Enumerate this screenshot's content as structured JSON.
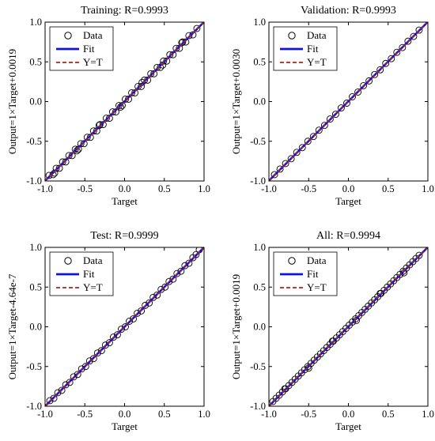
{
  "colors": {
    "fit": "#1010e0",
    "yt": "#b02018",
    "data": "#000000",
    "axis": "#000000"
  },
  "legend_icons": [
    "circle-marker-icon",
    "solid-line-icon",
    "dashed-line-icon"
  ],
  "chart_data": [
    {
      "type": "scatter",
      "title": "Training:  R=0.9993",
      "xlabel": "Target",
      "ylabel": "Output=1×Target+0.0019",
      "xlim": [
        -1.0,
        1.0
      ],
      "ylim": [
        -1.0,
        1.0
      ],
      "xticks": [
        "-1.0",
        "-0.5",
        "0.0",
        "0.5",
        "1.0"
      ],
      "yticks": [
        "-1.0",
        "-0.5",
        "0.0",
        "0.5",
        "1.0"
      ],
      "grid": false,
      "legend_position": "top-left",
      "legend": [
        "Data",
        "Fit",
        "Y=T"
      ],
      "fit": {
        "slope": 1,
        "intercept": 0.0019
      },
      "series": [
        {
          "name": "Data",
          "kind": "points",
          "x": [
            -0.95,
            -0.9,
            -0.86,
            -0.82,
            -0.78,
            -0.74,
            -0.7,
            -0.66,
            -0.62,
            -0.58,
            -0.55,
            -0.51,
            -0.47,
            -0.43,
            -0.39,
            -0.35,
            -0.31,
            -0.27,
            -0.23,
            -0.19,
            -0.15,
            -0.11,
            -0.07,
            -0.03,
            0.01,
            0.05,
            0.09,
            0.13,
            0.17,
            0.21,
            0.25,
            0.29,
            0.33,
            0.37,
            0.41,
            0.45,
            0.49,
            0.53,
            0.57,
            0.61,
            0.65,
            0.69,
            0.73,
            0.77,
            0.81,
            0.86,
            0.91,
            -0.88,
            -0.6,
            -0.32,
            -0.05,
            0.22,
            0.48,
            0.72
          ],
          "y": [
            -0.93,
            -0.92,
            -0.84,
            -0.84,
            -0.76,
            -0.76,
            -0.68,
            -0.68,
            -0.6,
            -0.6,
            -0.53,
            -0.53,
            -0.45,
            -0.45,
            -0.37,
            -0.37,
            -0.29,
            -0.29,
            -0.21,
            -0.21,
            -0.13,
            -0.13,
            -0.05,
            -0.05,
            0.03,
            0.03,
            0.11,
            0.11,
            0.19,
            0.19,
            0.27,
            0.27,
            0.35,
            0.35,
            0.43,
            0.43,
            0.51,
            0.51,
            0.59,
            0.59,
            0.67,
            0.67,
            0.75,
            0.75,
            0.83,
            0.84,
            0.92,
            -0.9,
            -0.62,
            -0.3,
            -0.07,
            0.24,
            0.46,
            0.74
          ]
        },
        {
          "name": "Fit",
          "kind": "line"
        },
        {
          "name": "Y=T",
          "kind": "dashed-line"
        }
      ]
    },
    {
      "type": "scatter",
      "title": "Validation:  R=0.9993",
      "xlabel": "Target",
      "ylabel": "Output=1×Target+0.0030",
      "xlim": [
        -1.0,
        1.0
      ],
      "ylim": [
        -1.0,
        1.0
      ],
      "xticks": [
        "-1.0",
        "-0.5",
        "0.0",
        "0.5",
        "1.0"
      ],
      "yticks": [
        "-1.0",
        "-0.5",
        "0.0",
        "0.5",
        "1.0"
      ],
      "grid": false,
      "legend_position": "top-left",
      "legend": [
        "Data",
        "Fit",
        "Y=T"
      ],
      "fit": {
        "slope": 1,
        "intercept": 0.003
      },
      "series": [
        {
          "name": "Data",
          "kind": "points",
          "x": [
            -0.93,
            -0.86,
            -0.79,
            -0.72,
            -0.65,
            -0.58,
            -0.51,
            -0.44,
            -0.37,
            -0.3,
            -0.23,
            -0.16,
            -0.09,
            -0.02,
            0.05,
            0.12,
            0.19,
            0.26,
            0.33,
            0.4,
            0.47,
            0.54,
            0.61,
            0.68,
            0.75,
            0.82,
            0.89
          ],
          "y": [
            -0.92,
            -0.85,
            -0.78,
            -0.72,
            -0.64,
            -0.58,
            -0.5,
            -0.44,
            -0.36,
            -0.3,
            -0.22,
            -0.16,
            -0.08,
            -0.02,
            0.06,
            0.12,
            0.2,
            0.26,
            0.34,
            0.4,
            0.48,
            0.54,
            0.62,
            0.68,
            0.76,
            0.82,
            0.9
          ]
        },
        {
          "name": "Fit",
          "kind": "line"
        },
        {
          "name": "Y=T",
          "kind": "dashed-line"
        }
      ]
    },
    {
      "type": "scatter",
      "title": "Test:  R=0.9999",
      "xlabel": "Target",
      "ylabel": "Output=1×Target-4.64e-7",
      "xlim": [
        -1.0,
        1.0
      ],
      "ylim": [
        -1.0,
        1.0
      ],
      "xticks": [
        "-1.0",
        "-0.5",
        "0.0",
        "0.5",
        "1.0"
      ],
      "yticks": [
        "-1.0",
        "-0.5",
        "0.0",
        "0.5",
        "1.0"
      ],
      "grid": false,
      "legend_position": "top-left",
      "legend": [
        "Data",
        "Fit",
        "Y=T"
      ],
      "fit": {
        "slope": 1,
        "intercept": -4.64e-07
      },
      "series": [
        {
          "name": "Data",
          "kind": "points",
          "x": [
            -0.94,
            -0.89,
            -0.84,
            -0.79,
            -0.74,
            -0.69,
            -0.64,
            -0.59,
            -0.54,
            -0.49,
            -0.44,
            -0.39,
            -0.34,
            -0.29,
            -0.24,
            -0.19,
            -0.14,
            -0.09,
            -0.04,
            0.01,
            0.06,
            0.11,
            0.16,
            0.21,
            0.26,
            0.31,
            0.36,
            0.41,
            0.46,
            0.51,
            0.56,
            0.61,
            0.66,
            0.71,
            0.76,
            0.81,
            0.86,
            0.9,
            0.94
          ],
          "y": [
            -0.93,
            -0.9,
            -0.83,
            -0.8,
            -0.73,
            -0.7,
            -0.63,
            -0.6,
            -0.53,
            -0.5,
            -0.43,
            -0.4,
            -0.33,
            -0.3,
            -0.23,
            -0.2,
            -0.13,
            -0.1,
            -0.03,
            0.0,
            0.07,
            0.1,
            0.17,
            0.2,
            0.27,
            0.3,
            0.37,
            0.4,
            0.47,
            0.5,
            0.57,
            0.6,
            0.67,
            0.7,
            0.77,
            0.8,
            0.87,
            0.91,
            0.97
          ]
        },
        {
          "name": "Fit",
          "kind": "line"
        },
        {
          "name": "Y=T",
          "kind": "dashed-line"
        }
      ]
    },
    {
      "type": "scatter",
      "title": "All:  R=0.9994",
      "xlabel": "Target",
      "ylabel": "Output=1×Target+0.0019",
      "xlim": [
        -1.0,
        1.0
      ],
      "ylim": [
        -1.0,
        1.0
      ],
      "xticks": [
        "-1.0",
        "-0.5",
        "0.0",
        "0.5",
        "1.0"
      ],
      "yticks": [
        "-1.0",
        "-0.5",
        "0.0",
        "0.5",
        "1.0"
      ],
      "grid": false,
      "legend_position": "top-left",
      "legend": [
        "Data",
        "Fit",
        "Y=T"
      ],
      "fit": {
        "slope": 1,
        "intercept": 0.0019
      },
      "series": [
        {
          "name": "Data",
          "kind": "points",
          "x": [
            -0.95,
            -0.91,
            -0.87,
            -0.83,
            -0.79,
            -0.75,
            -0.71,
            -0.67,
            -0.63,
            -0.59,
            -0.55,
            -0.51,
            -0.47,
            -0.43,
            -0.39,
            -0.35,
            -0.31,
            -0.27,
            -0.23,
            -0.19,
            -0.15,
            -0.11,
            -0.07,
            -0.03,
            0.01,
            0.05,
            0.09,
            0.13,
            0.17,
            0.21,
            0.25,
            0.29,
            0.33,
            0.37,
            0.41,
            0.45,
            0.49,
            0.53,
            0.57,
            0.61,
            0.65,
            0.69,
            0.73,
            0.77,
            0.81,
            0.85,
            0.89,
            -0.8,
            -0.5,
            -0.2,
            0.1,
            0.4,
            0.7
          ],
          "y": [
            -0.94,
            -0.9,
            -0.86,
            -0.82,
            -0.78,
            -0.74,
            -0.7,
            -0.66,
            -0.62,
            -0.58,
            -0.54,
            -0.5,
            -0.46,
            -0.42,
            -0.38,
            -0.34,
            -0.3,
            -0.26,
            -0.22,
            -0.18,
            -0.14,
            -0.1,
            -0.06,
            -0.02,
            0.02,
            0.06,
            0.1,
            0.14,
            0.18,
            0.22,
            0.26,
            0.3,
            0.34,
            0.38,
            0.42,
            0.46,
            0.5,
            0.54,
            0.58,
            0.62,
            0.66,
            0.7,
            0.74,
            0.78,
            0.82,
            0.86,
            0.9,
            -0.78,
            -0.52,
            -0.18,
            0.08,
            0.42,
            0.68
          ]
        },
        {
          "name": "Fit",
          "kind": "line"
        },
        {
          "name": "Y=T",
          "kind": "dashed-line"
        }
      ]
    }
  ]
}
